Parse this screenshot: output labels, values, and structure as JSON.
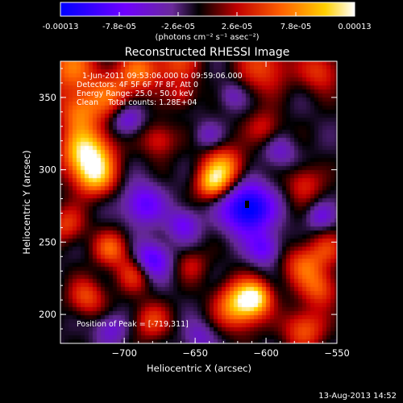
{
  "colorbar": {
    "tick_labels": [
      "-0.00013",
      "-7.8e-05",
      "-2.6e-05",
      "2.6e-05",
      "7.8e-05",
      "0.00013"
    ],
    "units_label": "(photons cm⁻² s⁻¹ asec⁻²)",
    "colors": [
      "#0000ff",
      "#6a00ff",
      "#9a30c0",
      "#000000",
      "#c00000",
      "#ff6000",
      "#ffd000",
      "#ffffff"
    ]
  },
  "chart_data": {
    "type": "heatmap",
    "title": "Reconstructed RHESSI Image",
    "xlabel": "Heliocentric X (arcsec)",
    "ylabel": "Heliocentric Y (arcsec)",
    "xlim": [
      -745,
      -550
    ],
    "ylim": [
      180,
      375
    ],
    "xticks": [
      -700,
      -650,
      -600,
      -550
    ],
    "yticks": [
      200,
      250,
      300,
      350
    ],
    "peak": [
      -719,
      311
    ]
  },
  "info": {
    "time_range": "1-Jun-2011 09:53:06.000 to 09:59:06.000",
    "detectors": "Detectors: 4F 5F 6F 7F 8F, Att 0",
    "energy": "Energy Range: 25.0 - 50.0 keV",
    "clean": "Clean    Total counts: 1.28E+04",
    "peak_text": "Position of Peak = [-719,311]"
  },
  "timestamp": "13-Aug-2013 14:52"
}
